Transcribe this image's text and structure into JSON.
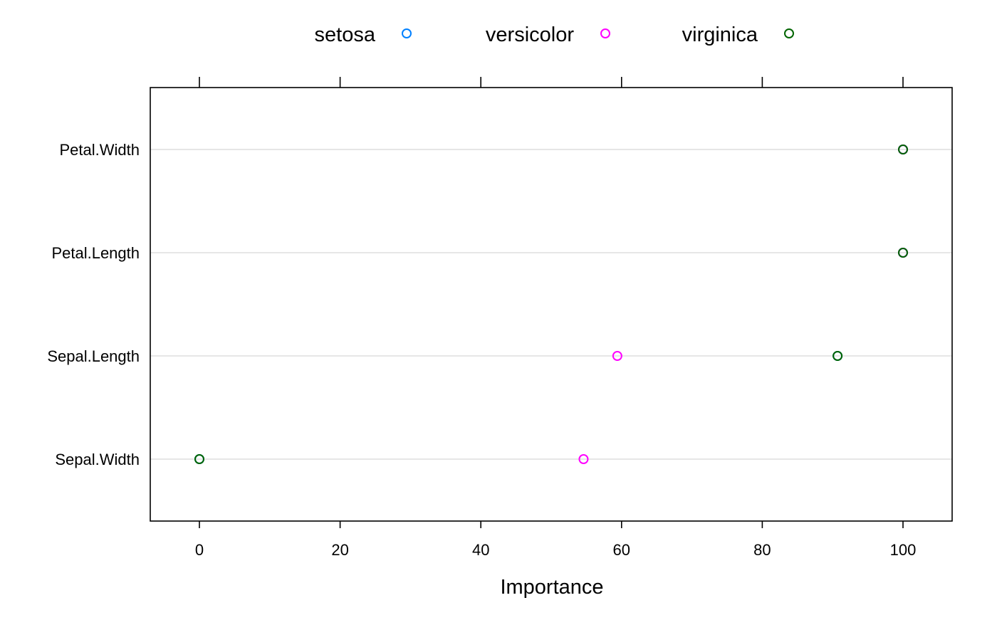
{
  "chart_data": {
    "type": "scatter",
    "subtype": "dotplot",
    "title": "",
    "xlabel": "Importance",
    "ylabel": "",
    "xlim": [
      -7,
      107
    ],
    "xticks": [
      0,
      20,
      40,
      60,
      80,
      100
    ],
    "xtick_labels": [
      "0",
      "20",
      "40",
      "60",
      "80",
      "100"
    ],
    "ticks_top_and_bottom": true,
    "categories": [
      "Petal.Width",
      "Petal.Length",
      "Sepal.Length",
      "Sepal.Width"
    ],
    "grid": "horizontal",
    "legend": {
      "position": "top",
      "orientation": "horizontal",
      "entries": [
        "setosa",
        "versicolor",
        "virginica"
      ]
    },
    "series": [
      {
        "name": "setosa",
        "color": "#0080ff",
        "marker": "open-circle",
        "values": [
          100,
          100,
          90.7,
          0
        ]
      },
      {
        "name": "versicolor",
        "color": "#ff00ff",
        "marker": "open-circle",
        "values": [
          100,
          100,
          59.4,
          54.6
        ]
      },
      {
        "name": "virginica",
        "color": "#006400",
        "marker": "open-circle",
        "values": [
          100,
          100,
          90.7,
          0
        ]
      }
    ]
  }
}
